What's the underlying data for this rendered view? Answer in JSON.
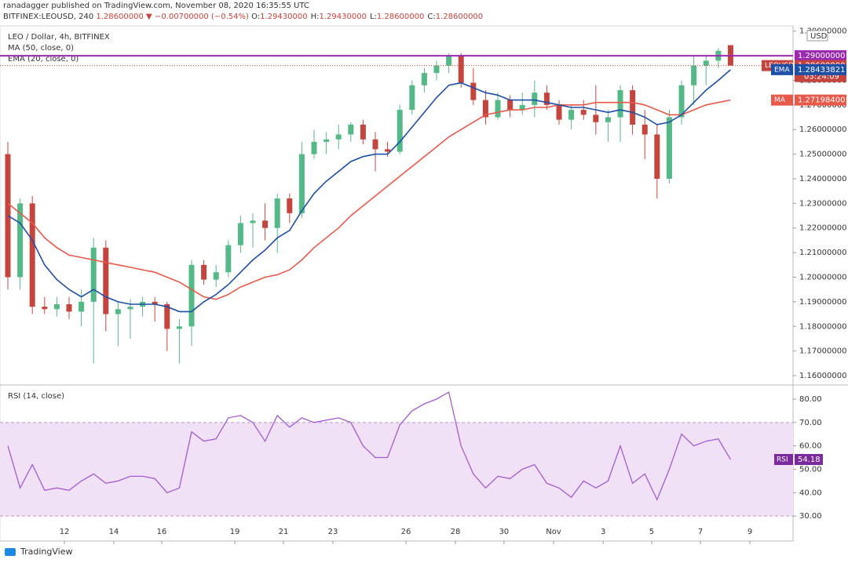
{
  "header": {
    "publisher": "ranadagger published on TradingView.com, November 08, 2020 16:35:55 UTC",
    "symbol": "BITFINEX:LEOUSD, 240",
    "price": "1.28600000",
    "arrow": "▼",
    "change": "−0.00700000 (−0.54%)",
    "ohlc": [
      {
        "label": "O:",
        "value": "1.29430000"
      },
      {
        "label": "H:",
        "value": "1.29430000"
      },
      {
        "label": "L:",
        "value": "1.28600000"
      },
      {
        "label": "C:",
        "value": "1.28600000"
      }
    ]
  },
  "footer": {
    "brand": "TradingView"
  },
  "chart_data": [
    {
      "type": "candlestick",
      "title": "LEO / Dollar, 4h, BITFINEX",
      "currency": "USD",
      "up_color": "#53b987",
      "down_color": "#c5443d",
      "xlim": [
        -0.64,
        64.1
      ],
      "ylim": [
        1.1565,
        1.3015
      ],
      "yticks": [
        {
          "value": 1.16,
          "label": "1.16000000"
        },
        {
          "value": 1.17,
          "label": "1.17000000"
        },
        {
          "value": 1.18,
          "label": "1.18000000"
        },
        {
          "value": 1.19,
          "label": "1.19000000"
        },
        {
          "value": 1.2,
          "label": "1.20000000"
        },
        {
          "value": 1.21,
          "label": "1.21000000"
        },
        {
          "value": 1.22,
          "label": "1.22000000"
        },
        {
          "value": 1.23,
          "label": "1.23000000"
        },
        {
          "value": 1.24,
          "label": "1.24000000"
        },
        {
          "value": 1.25,
          "label": "1.25000000"
        },
        {
          "value": 1.26,
          "label": "1.26000000"
        },
        {
          "value": 1.27,
          "label": "1.27000000"
        },
        {
          "value": 1.28,
          "label": "1.28000000"
        },
        {
          "value": 1.3,
          "label": "1.30000000"
        }
      ],
      "level": {
        "value": 1.29,
        "label": "1.29000000",
        "color": "#9c27b0"
      },
      "candles": {
        "open": [
          1.25,
          1.2,
          1.23,
          1.188,
          1.187,
          1.189,
          1.186,
          1.19,
          1.212,
          1.185,
          1.187,
          1.188,
          1.19,
          1.189,
          1.179,
          1.18,
          1.205,
          1.199,
          1.202,
          1.213,
          1.222,
          1.223,
          1.22,
          1.232,
          1.226,
          1.25,
          1.255,
          1.256,
          1.258,
          1.262,
          1.256,
          1.252,
          1.251,
          1.268,
          1.278,
          1.283,
          1.286,
          1.29,
          1.279,
          1.272,
          1.265,
          1.272,
          1.268,
          1.27,
          1.275,
          1.27,
          1.264,
          1.268,
          1.266,
          1.263,
          1.265,
          1.276,
          1.262,
          1.258,
          1.24,
          1.265,
          1.278,
          1.286,
          1.288,
          1.2943
        ],
        "high": [
          1.255,
          1.232,
          1.233,
          1.192,
          1.192,
          1.192,
          1.195,
          1.216,
          1.215,
          1.19,
          1.191,
          1.192,
          1.192,
          1.19,
          1.183,
          1.207,
          1.207,
          1.205,
          1.215,
          1.225,
          1.226,
          1.23,
          1.234,
          1.234,
          1.255,
          1.26,
          1.259,
          1.262,
          1.263,
          1.264,
          1.259,
          1.255,
          1.27,
          1.28,
          1.285,
          1.288,
          1.291,
          1.291,
          1.285,
          1.276,
          1.275,
          1.274,
          1.275,
          1.28,
          1.278,
          1.272,
          1.27,
          1.272,
          1.278,
          1.268,
          1.278,
          1.278,
          1.268,
          1.262,
          1.268,
          1.28,
          1.29,
          1.29,
          1.293,
          1.2943
        ],
        "low": [
          1.195,
          1.195,
          1.185,
          1.185,
          1.184,
          1.183,
          1.18,
          1.165,
          1.178,
          1.172,
          1.175,
          1.184,
          1.182,
          1.17,
          1.165,
          1.172,
          1.197,
          1.196,
          1.2,
          1.21,
          1.212,
          1.215,
          1.21,
          1.222,
          1.224,
          1.248,
          1.25,
          1.252,
          1.255,
          1.254,
          1.243,
          1.249,
          1.25,
          1.266,
          1.275,
          1.28,
          1.283,
          1.277,
          1.27,
          1.262,
          1.264,
          1.265,
          1.266,
          1.265,
          1.268,
          1.262,
          1.26,
          1.264,
          1.258,
          1.255,
          1.255,
          1.258,
          1.248,
          1.232,
          1.238,
          1.262,
          1.27,
          1.278,
          1.285,
          1.286
        ],
        "close": [
          1.2,
          1.23,
          1.188,
          1.187,
          1.189,
          1.186,
          1.19,
          1.212,
          1.185,
          1.187,
          1.188,
          1.19,
          1.189,
          1.179,
          1.18,
          1.205,
          1.199,
          1.202,
          1.213,
          1.222,
          1.223,
          1.22,
          1.232,
          1.226,
          1.25,
          1.255,
          1.256,
          1.258,
          1.262,
          1.256,
          1.252,
          1.251,
          1.268,
          1.278,
          1.283,
          1.286,
          1.29,
          1.279,
          1.272,
          1.265,
          1.272,
          1.268,
          1.27,
          1.275,
          1.27,
          1.264,
          1.268,
          1.266,
          1.263,
          1.265,
          1.276,
          1.262,
          1.258,
          1.24,
          1.265,
          1.278,
          1.286,
          1.288,
          1.292,
          1.286
        ]
      },
      "series": [
        {
          "name": "MA (50, close, 0)",
          "short": "MA",
          "color": "#e8594a",
          "last_label": "1.27198400",
          "values": [
            1.23,
            1.226,
            1.222,
            1.216,
            1.212,
            1.209,
            1.208,
            1.207,
            1.206,
            1.205,
            1.204,
            1.203,
            1.202,
            1.2,
            1.198,
            1.195,
            1.192,
            1.191,
            1.193,
            1.196,
            1.198,
            1.2,
            1.201,
            1.203,
            1.207,
            1.212,
            1.216,
            1.22,
            1.225,
            1.229,
            1.233,
            1.237,
            1.241,
            1.245,
            1.249,
            1.253,
            1.257,
            1.26,
            1.263,
            1.266,
            1.267,
            1.268,
            1.268,
            1.269,
            1.269,
            1.27,
            1.27,
            1.27,
            1.271,
            1.271,
            1.271,
            1.271,
            1.27,
            1.268,
            1.266,
            1.266,
            1.268,
            1.27,
            1.271,
            1.271984
          ]
        },
        {
          "name": "EMA (20, close, 0)",
          "short": "EMA",
          "color": "#1e4fa8",
          "last_label": "1.28433821",
          "values": [
            1.225,
            1.222,
            1.215,
            1.205,
            1.199,
            1.195,
            1.192,
            1.195,
            1.192,
            1.19,
            1.189,
            1.189,
            1.189,
            1.188,
            1.186,
            1.186,
            1.19,
            1.193,
            1.197,
            1.202,
            1.207,
            1.211,
            1.216,
            1.219,
            1.227,
            1.234,
            1.239,
            1.243,
            1.247,
            1.249,
            1.25,
            1.25,
            1.255,
            1.261,
            1.267,
            1.273,
            1.278,
            1.279,
            1.277,
            1.275,
            1.274,
            1.272,
            1.272,
            1.272,
            1.271,
            1.27,
            1.269,
            1.269,
            1.268,
            1.267,
            1.268,
            1.267,
            1.265,
            1.262,
            1.263,
            1.266,
            1.271,
            1.276,
            1.28,
            1.28433821
          ]
        }
      ],
      "last_price": {
        "name": "LEOUSD",
        "label": "1.28600000",
        "countdown": "03:24:09"
      }
    },
    {
      "type": "line",
      "title": "RSI (14, close)",
      "short": "RSI",
      "color": "#a35bd1",
      "band": [
        30,
        70
      ],
      "band_color": "#f0e1f7",
      "xlim": [
        -0.64,
        64.1
      ],
      "ylim": [
        19.3,
        85.7
      ],
      "yticks": [
        {
          "value": 30,
          "label": "30.00"
        },
        {
          "value": 40,
          "label": "40.00"
        },
        {
          "value": 50,
          "label": "50.00"
        },
        {
          "value": 60,
          "label": "60.00"
        },
        {
          "value": 70,
          "label": "70.00"
        },
        {
          "value": 80,
          "label": "80.00"
        }
      ],
      "xticks": [
        {
          "value": 4.62,
          "label": "12"
        },
        {
          "value": 8.65,
          "label": "14"
        },
        {
          "value": 12.56,
          "label": "16"
        },
        {
          "value": 18.53,
          "label": "19"
        },
        {
          "value": 22.5,
          "label": "21"
        },
        {
          "value": 26.54,
          "label": "23"
        },
        {
          "value": 32.5,
          "label": "26"
        },
        {
          "value": 36.54,
          "label": "28"
        },
        {
          "value": 40.5,
          "label": "30"
        },
        {
          "value": 44.55,
          "label": "Nov"
        },
        {
          "value": 48.6,
          "label": "3"
        },
        {
          "value": 52.56,
          "label": "5"
        },
        {
          "value": 56.54,
          "label": "7"
        },
        {
          "value": 60.58,
          "label": "9"
        }
      ],
      "values": [
        60,
        42,
        52,
        41,
        42,
        41,
        45,
        48,
        44,
        45,
        47,
        47,
        46,
        40,
        42,
        66,
        62,
        63,
        72,
        73,
        70,
        62,
        73,
        68,
        72,
        70,
        71,
        72,
        70,
        60,
        55,
        55,
        69,
        75,
        78,
        80,
        83,
        60,
        48,
        42,
        47,
        46,
        50,
        52,
        44,
        42,
        38,
        45,
        42,
        45,
        60,
        44,
        48,
        37,
        50,
        65,
        60,
        62,
        63,
        54.18
      ]
    }
  ]
}
